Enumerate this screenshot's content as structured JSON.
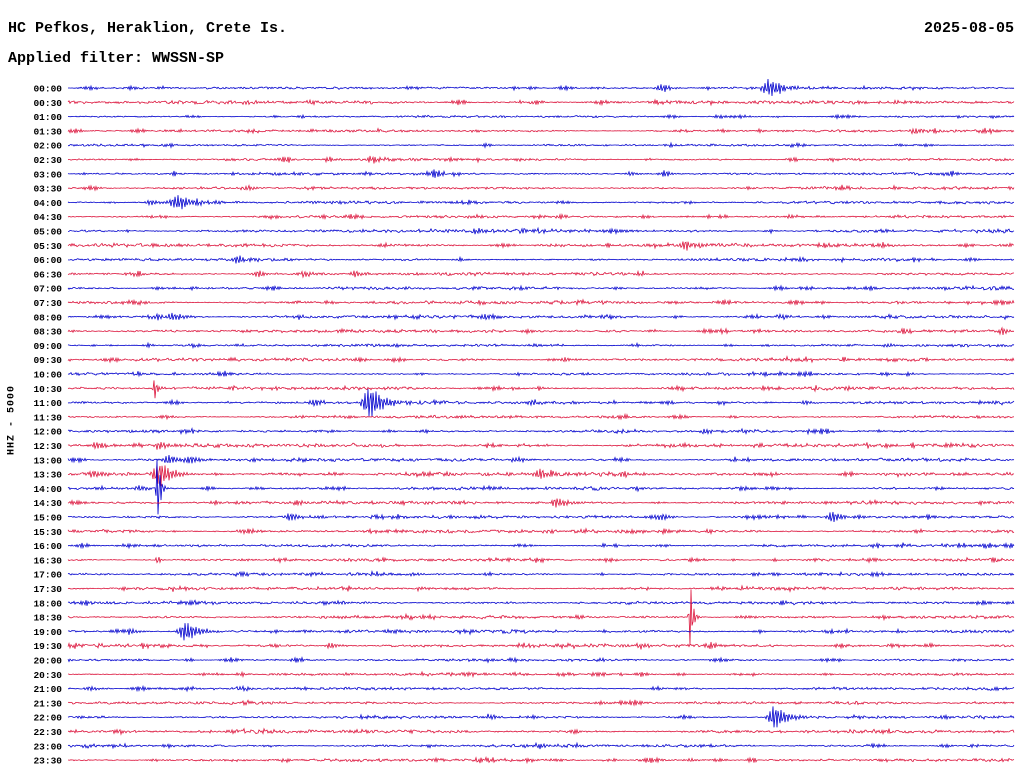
{
  "header": {
    "station_title": "HC Pefkos, Heraklion, Crete Is.",
    "date": "2025-08-05",
    "filter_label": "Applied filter: WWSSN-SP"
  },
  "axis": {
    "channel_label": "HHZ - 5000",
    "row_duration_minutes": 30
  },
  "colors": {
    "blue": "#0000cd",
    "red": "#dc143c"
  },
  "chart_data": {
    "type": "line",
    "title": "Helicorder day plot, station HC Pefkos, Heraklion, Crete Is., channel HHZ, scale 5000, filter WWSSN-SP, 2025-08-05",
    "xlabel": "time within 30-minute row segment (x given as fraction 0-1 of row)",
    "ylabel": "half-hour row start time (UTC)",
    "rows": [
      {
        "time": "00:00",
        "color": "blue",
        "noise": 0.7,
        "events": [
          {
            "x": 0.626,
            "amp": 3.5,
            "w": 10
          },
          {
            "x": 0.742,
            "amp": 9,
            "w": 14
          }
        ]
      },
      {
        "time": "00:30",
        "color": "red",
        "noise": 1.0,
        "events": [
          {
            "x": 0.187,
            "amp": 2,
            "w": 8
          },
          {
            "x": 0.256,
            "amp": 2.5,
            "w": 9
          },
          {
            "x": 0.478,
            "amp": 1.5,
            "w": 6
          }
        ]
      },
      {
        "time": "01:00",
        "color": "blue",
        "noise": 0.6,
        "events": []
      },
      {
        "time": "01:30",
        "color": "red",
        "noise": 0.7,
        "events": [
          {
            "x": 0.895,
            "amp": 3,
            "w": 9
          }
        ]
      },
      {
        "time": "02:00",
        "color": "blue",
        "noise": 0.6,
        "events": []
      },
      {
        "time": "02:30",
        "color": "red",
        "noise": 0.7,
        "events": [
          {
            "x": 0.277,
            "amp": 1.5,
            "w": 6
          }
        ]
      },
      {
        "time": "03:00",
        "color": "blue",
        "noise": 0.7,
        "events": [
          {
            "x": 0.594,
            "amp": 2,
            "w": 8
          },
          {
            "x": 0.631,
            "amp": 2,
            "w": 8
          }
        ]
      },
      {
        "time": "03:30",
        "color": "red",
        "noise": 0.8,
        "events": [
          {
            "x": 0.187,
            "amp": 5,
            "w": 5
          }
        ]
      },
      {
        "time": "04:00",
        "color": "blue",
        "noise": 0.8,
        "events": [
          {
            "x": 0.087,
            "amp": 3,
            "w": 9
          },
          {
            "x": 0.116,
            "amp": 7,
            "w": 16
          }
        ]
      },
      {
        "time": "04:30",
        "color": "red",
        "noise": 0.7,
        "events": [
          {
            "x": 0.763,
            "amp": 2,
            "w": 8
          }
        ]
      },
      {
        "time": "05:00",
        "color": "blue",
        "noise": 1.0,
        "events": [
          {
            "x": 0.43,
            "amp": 2.5,
            "w": 9
          },
          {
            "x": 0.481,
            "amp": 3,
            "w": 10
          }
        ]
      },
      {
        "time": "05:30",
        "color": "red",
        "noise": 1.0,
        "events": [
          {
            "x": 0.652,
            "amp": 5,
            "w": 10
          }
        ]
      },
      {
        "time": "06:00",
        "color": "blue",
        "noise": 0.8,
        "events": [
          {
            "x": 0.179,
            "amp": 4,
            "w": 9
          },
          {
            "x": 0.774,
            "amp": 2,
            "w": 8
          }
        ]
      },
      {
        "time": "06:30",
        "color": "red",
        "noise": 0.9,
        "events": [
          {
            "x": 0.201,
            "amp": 4,
            "w": 9
          },
          {
            "x": 0.251,
            "amp": 3,
            "w": 9
          },
          {
            "x": 0.303,
            "amp": 3.5,
            "w": 9
          }
        ]
      },
      {
        "time": "07:00",
        "color": "blue",
        "noise": 0.8,
        "events": [
          {
            "x": 0.927,
            "amp": 2,
            "w": 8
          }
        ]
      },
      {
        "time": "07:30",
        "color": "red",
        "noise": 1.0,
        "events": []
      },
      {
        "time": "08:00",
        "color": "blue",
        "noise": 0.9,
        "events": [
          {
            "x": 0.094,
            "amp": 5,
            "w": 8
          },
          {
            "x": 0.11,
            "amp": 6,
            "w": 10
          },
          {
            "x": 0.441,
            "amp": 4,
            "w": 9
          },
          {
            "x": 0.753,
            "amp": 3,
            "w": 9
          }
        ]
      },
      {
        "time": "08:30",
        "color": "red",
        "noise": 0.9,
        "events": [
          {
            "x": 0.885,
            "amp": 3,
            "w": 9
          },
          {
            "x": 0.988,
            "amp": 4,
            "w": 8
          }
        ]
      },
      {
        "time": "09:00",
        "color": "blue",
        "noise": 0.7,
        "events": [
          {
            "x": 0.869,
            "amp": 2,
            "w": 7
          }
        ]
      },
      {
        "time": "09:30",
        "color": "red",
        "noise": 0.9,
        "events": [
          {
            "x": 0.525,
            "amp": 2.5,
            "w": 8
          }
        ]
      },
      {
        "time": "10:00",
        "color": "blue",
        "noise": 0.7,
        "events": []
      },
      {
        "time": "10:30",
        "color": "red",
        "noise": 0.9,
        "events": [
          {
            "x": 0.092,
            "amp": 12,
            "w": 2.5
          }
        ]
      },
      {
        "time": "11:00",
        "color": "blue",
        "noise": 0.9,
        "events": [
          {
            "x": 0.261,
            "amp": 4,
            "w": 10
          },
          {
            "x": 0.319,
            "amp": 16,
            "w": 14
          },
          {
            "x": 0.49,
            "amp": 3.5,
            "w": 9
          },
          {
            "x": 0.779,
            "amp": 2.5,
            "w": 8
          }
        ]
      },
      {
        "time": "11:30",
        "color": "red",
        "noise": 0.8,
        "events": [
          {
            "x": 0.414,
            "amp": 2,
            "w": 7
          }
        ]
      },
      {
        "time": "12:00",
        "color": "blue",
        "noise": 0.8,
        "events": [
          {
            "x": 0.673,
            "amp": 3,
            "w": 8
          },
          {
            "x": 0.713,
            "amp": 2.5,
            "w": 8
          }
        ]
      },
      {
        "time": "12:30",
        "color": "red",
        "noise": 1.1,
        "events": [
          {
            "x": 0.029,
            "amp": 4,
            "w": 10
          },
          {
            "x": 0.097,
            "amp": 4.5,
            "w": 10
          },
          {
            "x": 0.846,
            "amp": 2.5,
            "w": 8
          }
        ]
      },
      {
        "time": "13:00",
        "color": "blue",
        "noise": 0.9,
        "events": [
          {
            "x": 0.106,
            "amp": 5,
            "w": 10
          },
          {
            "x": 0.129,
            "amp": 4,
            "w": 9
          },
          {
            "x": 0.473,
            "amp": 4,
            "w": 9
          }
        ]
      },
      {
        "time": "13:30",
        "color": "red",
        "noise": 1.1,
        "events": [
          {
            "x": 0.029,
            "amp": 4,
            "w": 9
          },
          {
            "x": 0.097,
            "amp": 13,
            "w": 12
          },
          {
            "x": 0.499,
            "amp": 5,
            "w": 10
          },
          {
            "x": 0.586,
            "amp": 3,
            "w": 9
          }
        ]
      },
      {
        "time": "14:00",
        "color": "blue",
        "noise": 0.9,
        "events": [
          {
            "x": 0.076,
            "amp": 3,
            "w": 8
          },
          {
            "x": 0.095,
            "amp": 40,
            "w": 2.5
          }
        ]
      },
      {
        "time": "14:30",
        "color": "red",
        "noise": 0.9,
        "events": [
          {
            "x": 0.516,
            "amp": 6,
            "w": 9
          }
        ]
      },
      {
        "time": "15:00",
        "color": "blue",
        "noise": 0.9,
        "events": [
          {
            "x": 0.235,
            "amp": 4,
            "w": 9
          },
          {
            "x": 0.626,
            "amp": 4,
            "w": 9
          },
          {
            "x": 0.808,
            "amp": 6,
            "w": 10
          }
        ]
      },
      {
        "time": "15:30",
        "color": "red",
        "noise": 1.0,
        "events": [
          {
            "x": 0.182,
            "amp": 2,
            "w": 7
          }
        ]
      },
      {
        "time": "16:00",
        "color": "blue",
        "noise": 0.7,
        "events": []
      },
      {
        "time": "16:30",
        "color": "red",
        "noise": 0.8,
        "events": [
          {
            "x": 0.095,
            "amp": 6,
            "w": 2
          }
        ]
      },
      {
        "time": "17:00",
        "color": "blue",
        "noise": 0.8,
        "events": [
          {
            "x": 0.364,
            "amp": 2,
            "w": 7
          }
        ]
      },
      {
        "time": "17:30",
        "color": "red",
        "noise": 0.9,
        "events": [
          {
            "x": 0.372,
            "amp": 2.5,
            "w": 8
          },
          {
            "x": 0.713,
            "amp": 2,
            "w": 7
          }
        ]
      },
      {
        "time": "18:00",
        "color": "blue",
        "noise": 0.9,
        "events": [
          {
            "x": 0.293,
            "amp": 2,
            "w": 7
          }
        ]
      },
      {
        "time": "18:30",
        "color": "red",
        "noise": 0.9,
        "events": [
          {
            "x": 0.658,
            "amp": 36,
            "w": 2.5
          }
        ]
      },
      {
        "time": "19:00",
        "color": "blue",
        "noise": 0.9,
        "events": [
          {
            "x": 0.066,
            "amp": 3,
            "w": 8
          },
          {
            "x": 0.124,
            "amp": 10,
            "w": 13
          }
        ]
      },
      {
        "time": "19:30",
        "color": "red",
        "noise": 1.0,
        "events": [
          {
            "x": 0.277,
            "amp": 3,
            "w": 9
          },
          {
            "x": 0.605,
            "amp": 2.5,
            "w": 8
          }
        ]
      },
      {
        "time": "20:00",
        "color": "blue",
        "noise": 0.7,
        "events": []
      },
      {
        "time": "20:30",
        "color": "red",
        "noise": 0.7,
        "events": []
      },
      {
        "time": "21:00",
        "color": "blue",
        "noise": 0.8,
        "events": [
          {
            "x": 0.023,
            "amp": 2.5,
            "w": 8
          },
          {
            "x": 0.182,
            "amp": 2,
            "w": 7
          }
        ]
      },
      {
        "time": "21:30",
        "color": "red",
        "noise": 0.8,
        "events": [
          {
            "x": 0.568,
            "amp": 2,
            "w": 7
          }
        ]
      },
      {
        "time": "22:00",
        "color": "blue",
        "noise": 0.8,
        "events": [
          {
            "x": 0.446,
            "amp": 3,
            "w": 8
          },
          {
            "x": 0.747,
            "amp": 12,
            "w": 12
          }
        ]
      },
      {
        "time": "22:30",
        "color": "red",
        "noise": 1.0,
        "events": []
      },
      {
        "time": "23:00",
        "color": "blue",
        "noise": 0.8,
        "events": [
          {
            "x": 0.504,
            "amp": 2.5,
            "w": 8
          },
          {
            "x": 0.536,
            "amp": 2,
            "w": 7
          }
        ]
      },
      {
        "time": "23:30",
        "color": "red",
        "noise": 0.8,
        "events": [
          {
            "x": 0.658,
            "amp": 2,
            "w": 7
          }
        ]
      }
    ]
  }
}
